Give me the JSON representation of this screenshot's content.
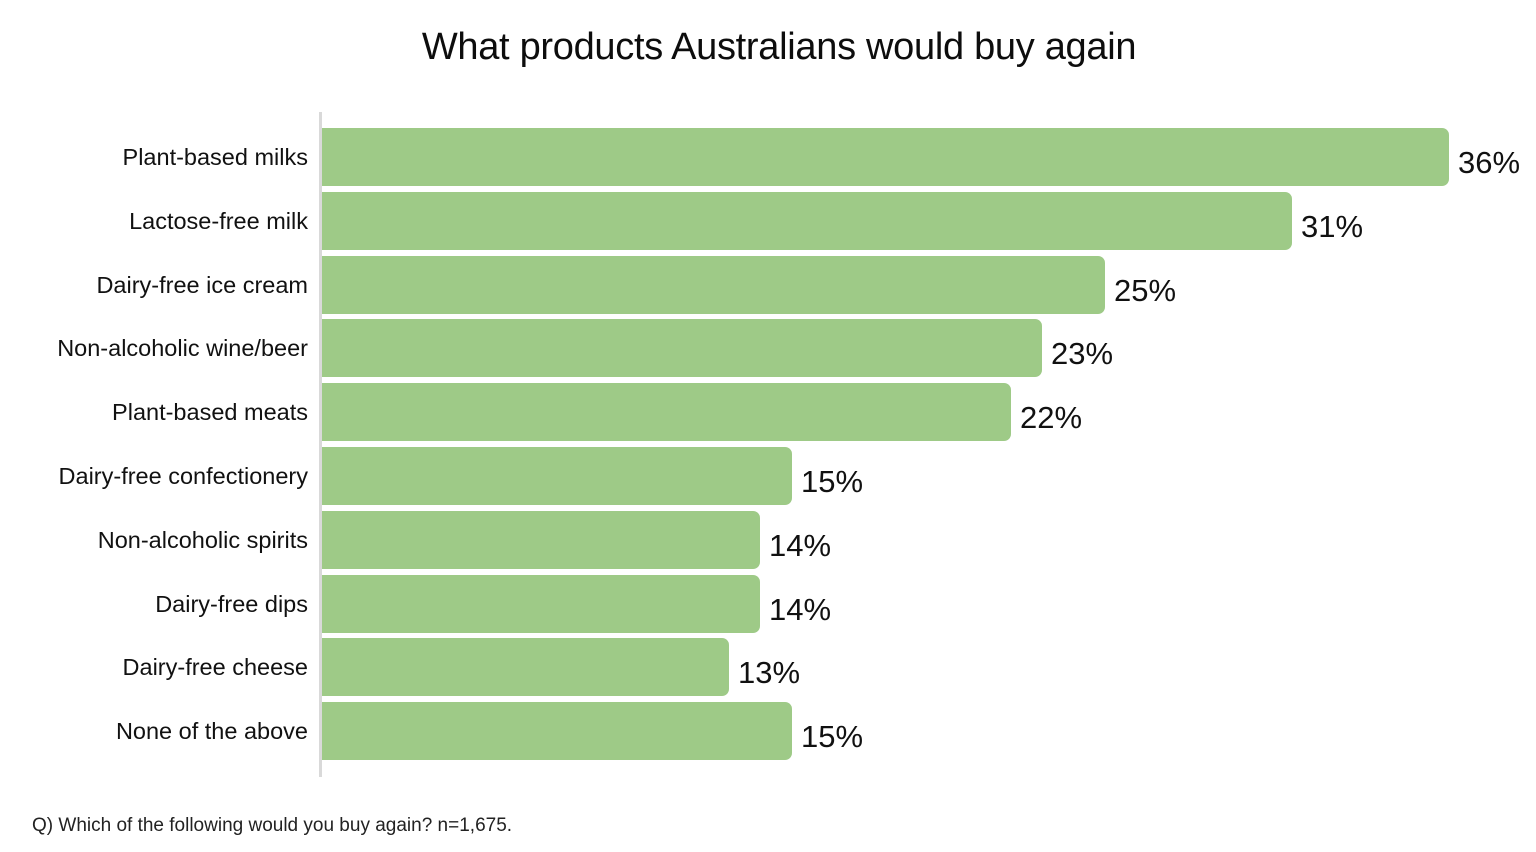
{
  "chart_data": {
    "type": "bar",
    "orientation": "horizontal",
    "title": "What products Australians would buy again",
    "xlabel": "",
    "ylabel": "",
    "categories": [
      "Plant-based milks",
      "Lactose-free milk",
      "Dairy-free ice cream",
      "Non-alcoholic wine/beer",
      "Plant-based meats",
      "Dairy-free confectionery",
      "Non-alcoholic spirits",
      "Dairy-free dips",
      "Dairy-free cheese",
      "None of the above"
    ],
    "values": [
      36,
      31,
      25,
      23,
      22,
      15,
      14,
      14,
      13,
      15
    ],
    "value_labels": [
      "36%",
      "31%",
      "25%",
      "23%",
      "22%",
      "15%",
      "14%",
      "14%",
      "13%",
      "15%"
    ],
    "unit": "%",
    "xlim": [
      0,
      36
    ],
    "grid": false,
    "legend": null,
    "bar_color": "#9ECA87",
    "footnote": "Q) Which of the following would you buy again? n=1,675."
  },
  "header": {
    "title": "What products Australians would buy again"
  },
  "rows": [
    {
      "label": "Plant-based milks",
      "value": 36,
      "value_label": "36%"
    },
    {
      "label": "Lactose-free milk",
      "value": 31,
      "value_label": "31%"
    },
    {
      "label": "Dairy-free ice cream",
      "value": 25,
      "value_label": "25%"
    },
    {
      "label": "Non-alcoholic wine/beer",
      "value": 23,
      "value_label": "23%"
    },
    {
      "label": "Plant-based meats",
      "value": 22,
      "value_label": "22%"
    },
    {
      "label": "Dairy-free confectionery",
      "value": 15,
      "value_label": "15%"
    },
    {
      "label": "Non-alcoholic spirits",
      "value": 14,
      "value_label": "14%"
    },
    {
      "label": "Dairy-free dips",
      "value": 14,
      "value_label": "14%"
    },
    {
      "label": "Dairy-free cheese",
      "value": 13,
      "value_label": "13%"
    },
    {
      "label": "None of the above",
      "value": 15,
      "value_label": "15%"
    }
  ],
  "footer": {
    "note": "Q) Which of the following would you buy again? n=1,675."
  },
  "colors": {
    "bar": "#9ECA87",
    "axis": "#D9D9D9",
    "text": "#111111"
  }
}
